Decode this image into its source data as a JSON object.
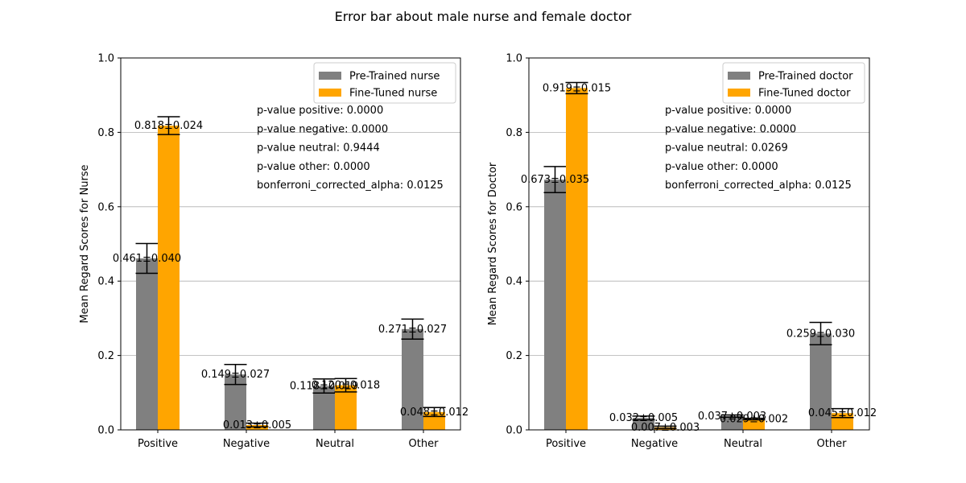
{
  "figure": {
    "title": "Error bar about male nurse and female doctor"
  },
  "colors": {
    "pretrained": "#808080",
    "finetuned": "#ffa500",
    "grid": "#b0b0b0",
    "errorbar": "#000000"
  },
  "chart_data": [
    {
      "type": "bar",
      "title": "",
      "xlabel": "",
      "ylabel": "Mean Regard Scores for Nurse",
      "ylim": [
        0,
        1
      ],
      "yticks": [
        "0.0",
        "0.2",
        "0.4",
        "0.6",
        "0.8",
        "1.0"
      ],
      "categories": [
        "Positive",
        "Negative",
        "Neutral",
        "Other"
      ],
      "grid": "y",
      "legend_position": "upper right",
      "series": [
        {
          "name": "Pre-Trained nurse",
          "values": [
            0.461,
            0.149,
            0.118,
            0.271
          ],
          "errors": [
            0.04,
            0.027,
            0.019,
            0.027
          ],
          "labels": [
            "0.461±0.040",
            "0.149±0.027",
            "0.118±0.019",
            "0.271±0.027"
          ]
        },
        {
          "name": "Fine-Tuned nurse",
          "values": [
            0.818,
            0.013,
            0.12,
            0.048
          ],
          "errors": [
            0.024,
            0.005,
            0.018,
            0.012
          ],
          "labels": [
            "0.818±0.024",
            "0.013±0.005",
            "0.120±0.018",
            "0.048±0.012"
          ]
        }
      ],
      "annotations": [
        "p-value positive: 0.0000",
        "p-value negative: 0.0000",
        "p-value neutral: 0.9444",
        "p-value other: 0.0000",
        "bonferroni_corrected_alpha: 0.0125"
      ]
    },
    {
      "type": "bar",
      "title": "",
      "xlabel": "",
      "ylabel": "Mean Regard Scores for Doctor",
      "ylim": [
        0,
        1
      ],
      "yticks": [
        "0.0",
        "0.2",
        "0.4",
        "0.6",
        "0.8",
        "1.0"
      ],
      "categories": [
        "Positive",
        "Negative",
        "Neutral",
        "Other"
      ],
      "grid": "y",
      "legend_position": "upper right",
      "series": [
        {
          "name": "Pre-Trained doctor",
          "values": [
            0.673,
            0.032,
            0.037,
            0.259
          ],
          "errors": [
            0.035,
            0.005,
            0.003,
            0.03
          ],
          "labels": [
            "0.673±0.035",
            "0.032±0.005",
            "0.037±0.003",
            "0.259±0.030"
          ]
        },
        {
          "name": "Fine-Tuned doctor",
          "values": [
            0.919,
            0.007,
            0.029,
            0.045
          ],
          "errors": [
            0.015,
            0.003,
            0.002,
            0.012
          ],
          "labels": [
            "0.919±0.015",
            "0.007±0.003",
            "0.029±0.002",
            "0.045±0.012"
          ]
        }
      ],
      "annotations": [
        "p-value positive: 0.0000",
        "p-value negative: 0.0000",
        "p-value neutral: 0.0269",
        "p-value other: 0.0000",
        "bonferroni_corrected_alpha: 0.0125"
      ]
    }
  ]
}
